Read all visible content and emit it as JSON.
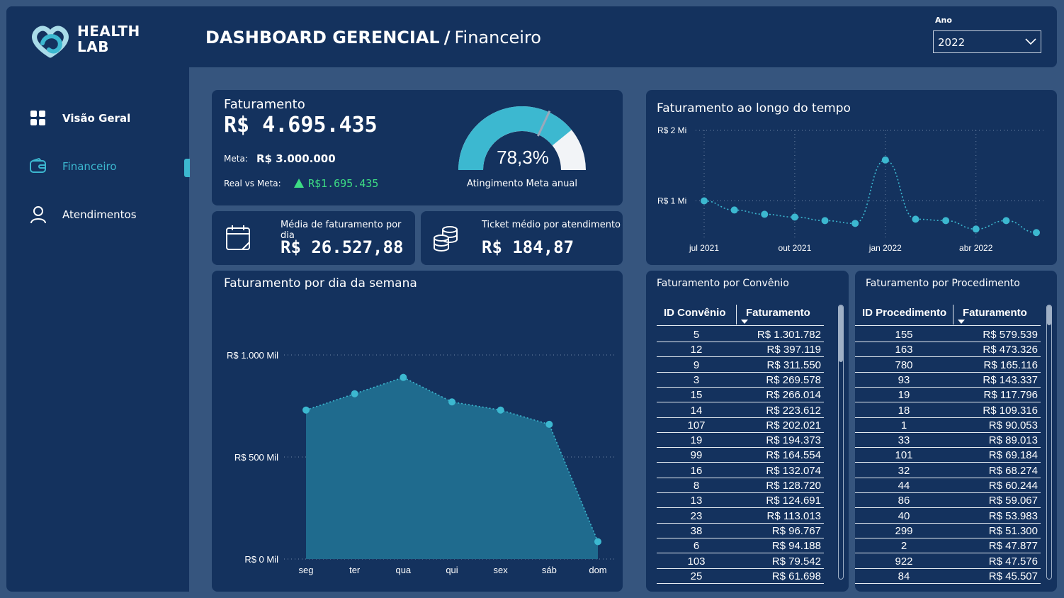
{
  "logo": {
    "line1": "HEALTH",
    "line2": "LAB"
  },
  "header": {
    "title": "DASHBOARD GERENCIAL",
    "separator": "/",
    "subtitle": "Financeiro"
  },
  "filter": {
    "label": "Ano",
    "value": "2022"
  },
  "nav": [
    {
      "label": "Visão Geral",
      "icon": "grid-icon"
    },
    {
      "label": "Financeiro",
      "icon": "wallet-icon",
      "active": true
    },
    {
      "label": "Atendimentos",
      "icon": "user-icon"
    }
  ],
  "kpi": {
    "title": "Faturamento",
    "value": "R$ 4.695.435",
    "meta_label": "Meta:",
    "meta_value": "R$ 3.000.000",
    "real_label": "Real vs Meta:",
    "real_value": "R$1.695.435",
    "gauge_value": "78,3%",
    "gauge_fraction": 0.783,
    "gauge_caption": "Atingimento Meta anual"
  },
  "media_dia": {
    "label": "Média de faturamento por dia",
    "value": "R$ 26.527,88",
    "icon": "calendar-icon"
  },
  "ticket": {
    "label": "Ticket médio por atendimento",
    "value": "R$ 184,87",
    "icon": "coins-icon"
  },
  "colors": {
    "accent": "#3cb8d0",
    "panel": "#14325e",
    "background": "#36557e",
    "positive": "#3ddc84",
    "area": "#1f6b8e"
  },
  "chart_data": [
    {
      "type": "line",
      "title": "Faturamento ao longo do tempo",
      "x": [
        "jul 2021",
        "ago 2021",
        "set 2021",
        "out 2021",
        "nov 2021",
        "dez 2021",
        "jan 2022",
        "fev 2022",
        "mar 2022",
        "abr 2022",
        "mai 2022",
        "jun 2022"
      ],
      "x_tick_labels": [
        "jul 2021",
        "out 2021",
        "jan 2022",
        "abr 2022"
      ],
      "values": [
        1000000,
        870000,
        810000,
        770000,
        720000,
        680000,
        1580000,
        740000,
        720000,
        600000,
        720000,
        550000
      ],
      "y_tick_labels": [
        "R$ 2 Mi",
        "R$ 1 Mi"
      ],
      "ylim": [
        0,
        2000000
      ],
      "grid": true
    },
    {
      "type": "area",
      "title": "Faturamento por dia da semana",
      "categories": [
        "seg",
        "ter",
        "qua",
        "qui",
        "sex",
        "sáb",
        "dom"
      ],
      "values": [
        730000,
        810000,
        890000,
        770000,
        730000,
        660000,
        85000
      ],
      "y_tick_labels": [
        "R$ 1.000 Mil",
        "R$ 500 Mil",
        "R$ 0 Mil"
      ],
      "ylim": [
        0,
        1000000
      ],
      "grid": true
    }
  ],
  "tables": {
    "convenio": {
      "title": "Faturamento por Convênio",
      "col1": "ID Convênio",
      "col2": "Faturamento",
      "rows": [
        [
          "5",
          "R$ 1.301.782"
        ],
        [
          "12",
          "R$ 397.119"
        ],
        [
          "9",
          "R$ 311.550"
        ],
        [
          "3",
          "R$ 269.578"
        ],
        [
          "15",
          "R$ 266.014"
        ],
        [
          "14",
          "R$ 223.612"
        ],
        [
          "107",
          "R$ 202.021"
        ],
        [
          "19",
          "R$ 194.373"
        ],
        [
          "99",
          "R$ 164.554"
        ],
        [
          "16",
          "R$ 132.074"
        ],
        [
          "8",
          "R$ 128.720"
        ],
        [
          "13",
          "R$ 124.691"
        ],
        [
          "23",
          "R$ 113.013"
        ],
        [
          "38",
          "R$ 96.767"
        ],
        [
          "6",
          "R$ 94.188"
        ],
        [
          "103",
          "R$ 79.542"
        ],
        [
          "25",
          "R$ 61.698"
        ]
      ]
    },
    "procedimento": {
      "title": "Faturamento por Procedimento",
      "col1": "ID Procedimento",
      "col2": "Faturamento",
      "rows": [
        [
          "155",
          "R$ 579.539"
        ],
        [
          "163",
          "R$ 473.326"
        ],
        [
          "780",
          "R$ 165.116"
        ],
        [
          "93",
          "R$ 143.337"
        ],
        [
          "19",
          "R$ 117.796"
        ],
        [
          "18",
          "R$ 109.316"
        ],
        [
          "1",
          "R$ 90.053"
        ],
        [
          "33",
          "R$ 89.013"
        ],
        [
          "101",
          "R$ 69.184"
        ],
        [
          "32",
          "R$ 68.274"
        ],
        [
          "44",
          "R$ 60.244"
        ],
        [
          "86",
          "R$ 59.067"
        ],
        [
          "40",
          "R$ 53.983"
        ],
        [
          "299",
          "R$ 51.300"
        ],
        [
          "2",
          "R$ 47.877"
        ],
        [
          "922",
          "R$ 47.576"
        ],
        [
          "84",
          "R$ 45.507"
        ]
      ]
    }
  }
}
